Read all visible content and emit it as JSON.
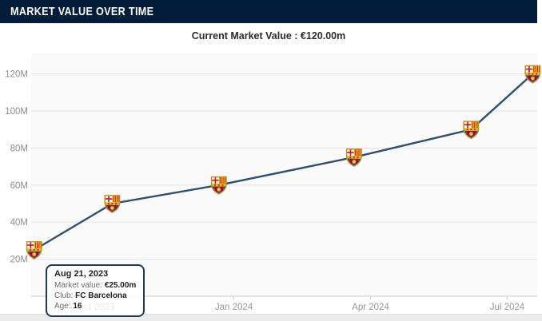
{
  "header": {
    "title": "MARKET VALUE OVER TIME"
  },
  "subtitle": {
    "text": "Current Market Value : €120.00m"
  },
  "tooltip": {
    "date": "Aug 21, 2023",
    "rows": [
      {
        "label": "Market value:",
        "value": "€25.00m"
      },
      {
        "label": "Club:",
        "value": "FC Barcelona"
      },
      {
        "label": "Age:",
        "value": "16"
      }
    ]
  },
  "chart_data": {
    "type": "line",
    "title": "MARKET VALUE OVER TIME",
    "unit": "€ million",
    "legend": "none",
    "grid": "horizontal",
    "plot_bg": "#fafafa",
    "x_domain": [
      "2023-08-19",
      "2024-07-21"
    ],
    "ylim": [
      0,
      131
    ],
    "x_ticks": [
      {
        "label": "Oct 2023",
        "date": "2023-10-01"
      },
      {
        "label": "Jan 2024",
        "date": "2024-01-01"
      },
      {
        "label": "Apr 2024",
        "date": "2024-04-01"
      },
      {
        "label": "Jul 2024",
        "date": "2024-07-01"
      }
    ],
    "y_ticks": [
      {
        "label": "20M",
        "value": 20
      },
      {
        "label": "40M",
        "value": 40
      },
      {
        "label": "60M",
        "value": 60
      },
      {
        "label": "80M",
        "value": 80
      },
      {
        "label": "100M",
        "value": 100
      },
      {
        "label": "120M",
        "value": 120
      }
    ],
    "series": [
      {
        "name": "Market value",
        "club": "FC Barcelona",
        "marker": "fc-barcelona-crest",
        "points": [
          {
            "date": "2023-08-21",
            "value_m": 25
          },
          {
            "date": "2023-10-12",
            "value_m": 50
          },
          {
            "date": "2023-12-22",
            "value_m": 60
          },
          {
            "date": "2024-03-21",
            "value_m": 75
          },
          {
            "date": "2024-06-07",
            "value_m": 90
          },
          {
            "date": "2024-07-18",
            "value_m": 120
          }
        ]
      }
    ],
    "colors": {
      "line": "#2f4e71",
      "grid": "#e3e3e3",
      "axis": "#cccccc",
      "tick_label": "#999999",
      "y_label": "#8d8d8d",
      "header_bg": "#031c39"
    }
  }
}
